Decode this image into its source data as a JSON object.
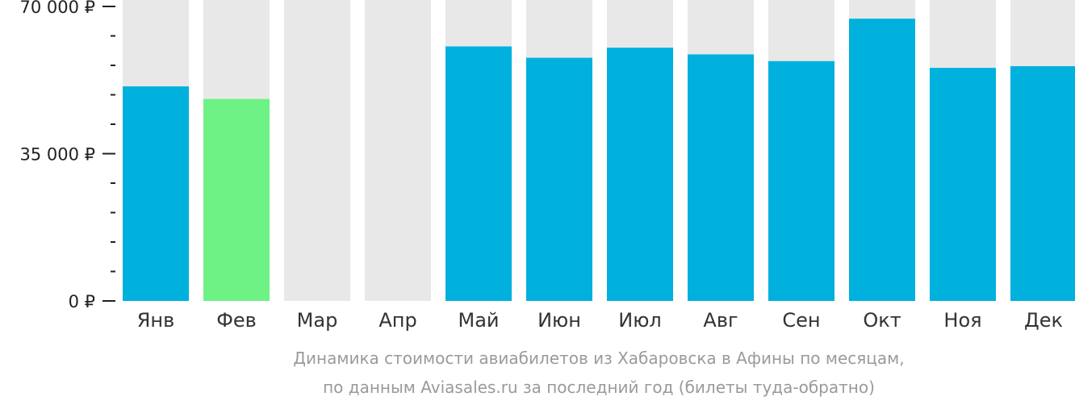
{
  "chart_data": {
    "type": "bar",
    "categories": [
      "Янв",
      "Фев",
      "Мар",
      "Апр",
      "Май",
      "Июн",
      "Июл",
      "Авг",
      "Сен",
      "Окт",
      "Ноя",
      "Дек"
    ],
    "values": [
      51000,
      48000,
      null,
      null,
      60500,
      57800,
      60200,
      58600,
      57000,
      67100,
      55400,
      55800
    ],
    "ylim": [
      0,
      72000
    ],
    "yticks": [
      {
        "value": 0,
        "label": "0 ₽"
      },
      {
        "value": 35000,
        "label": "35 000 ₽"
      },
      {
        "value": 70000,
        "label": "70 000 ₽"
      }
    ],
    "minor_tick_step": 7000,
    "colors": {
      "bar": "#00b0dd",
      "highlight": "#6ef286",
      "background_bar": "#e8e8e8",
      "axis": "#222222"
    },
    "highlight_index": 1,
    "caption_line1": "Динамика стоимости авиабилетов из Хабаровска в Афины по месяцам,",
    "caption_line2": "по данным Aviasales.ru за последний год (билеты туда-обратно)"
  }
}
